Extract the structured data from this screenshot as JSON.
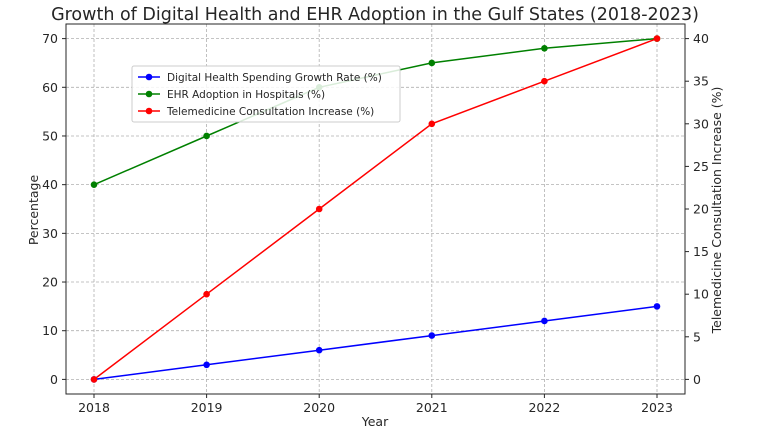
{
  "chart_data": {
    "type": "line",
    "title": "Growth of Digital Health and EHR Adoption in the Gulf States (2018-2023)",
    "xlabel": "Year",
    "ylabel": "Percentage",
    "y2label": "Telemedicine Consultation Increase (%)",
    "categories": [
      "2018",
      "2019",
      "2020",
      "2021",
      "2022",
      "2023"
    ],
    "x": [
      2018,
      2019,
      2020,
      2021,
      2022,
      2023
    ],
    "ylim": [
      -3,
      73
    ],
    "y2lim": [
      -1.714,
      41.714
    ],
    "yticks": [
      0,
      10,
      20,
      30,
      40,
      50,
      60,
      70
    ],
    "y2ticks": [
      0,
      5,
      10,
      15,
      20,
      25,
      30,
      35,
      40
    ],
    "grid": true,
    "legend_position": "upper-left",
    "series": [
      {
        "name": "Digital Health Spending Growth Rate (%)",
        "axis": "left",
        "color": "#0000ff",
        "values": [
          0,
          3,
          6,
          9,
          12,
          15
        ]
      },
      {
        "name": "EHR Adoption in Hospitals (%)",
        "axis": "left",
        "color": "#008000",
        "values": [
          40,
          50,
          60,
          65,
          68,
          70
        ]
      },
      {
        "name": "Telemedicine Consultation Increase (%)",
        "axis": "right",
        "color": "#ff0000",
        "values": [
          0,
          10,
          20,
          30,
          35,
          40
        ]
      }
    ]
  }
}
